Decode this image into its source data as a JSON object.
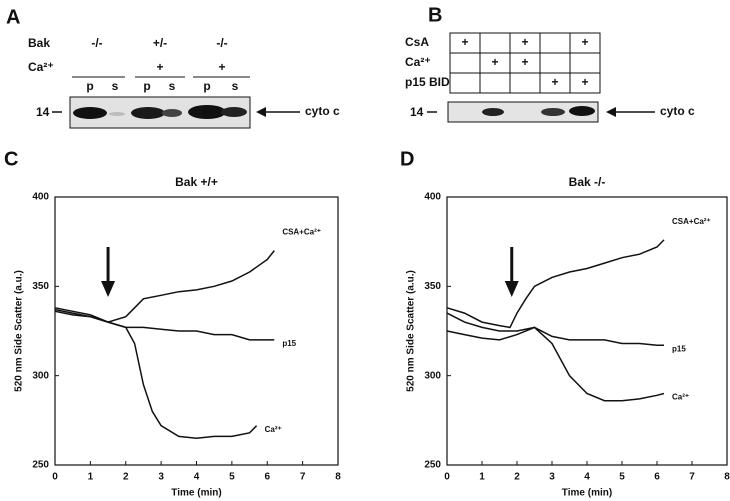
{
  "panels": {
    "A": {
      "letter": "A",
      "row_labels": [
        "Bak",
        "Ca²⁺"
      ],
      "genotypes": [
        "-/-",
        "+/-",
        "-/-"
      ],
      "calcium": [
        null,
        "+",
        "+"
      ],
      "lanes": [
        "p",
        "s",
        "p",
        "s",
        "p",
        "s"
      ],
      "marker": "14",
      "band": "cyto c"
    },
    "B": {
      "letter": "B",
      "row_labels": [
        "CsA",
        "Ca²⁺",
        "p15 BID"
      ],
      "rows": [
        [
          "+",
          null,
          "+",
          null,
          "+"
        ],
        [
          null,
          "+",
          "+",
          null,
          null
        ],
        [
          null,
          null,
          null,
          "+",
          "+"
        ]
      ],
      "marker": "14",
      "band": "cyto c"
    },
    "C": {
      "letter": "C"
    },
    "D": {
      "letter": "D"
    }
  },
  "chart_data": [
    {
      "type": "line",
      "title": "Bak +/+",
      "x_label": "Time (min)",
      "y_label": "520 nm Side Scatter (a.u.)",
      "xlim": [
        0,
        8
      ],
      "xticks": [
        0,
        1,
        2,
        3,
        4,
        5,
        6,
        7,
        8
      ],
      "ylim": [
        250,
        400
      ],
      "yticks": [
        250,
        300,
        350,
        400
      ],
      "series": [
        {
          "name": "CSA+Ca²⁺",
          "color": "#111111",
          "x": [
            0,
            0.5,
            1,
            1.5,
            2,
            2.25,
            2.5,
            3,
            3.5,
            4,
            4.5,
            5,
            5.5,
            6,
            6.2
          ],
          "values": [
            338,
            336,
            334,
            330,
            333,
            338,
            343,
            345,
            347,
            348,
            350,
            353,
            358,
            365,
            370
          ]
        },
        {
          "name": "p15",
          "color": "#111111",
          "x": [
            0,
            0.5,
            1,
            1.5,
            2,
            2.5,
            3,
            3.5,
            4,
            4.5,
            5,
            5.5,
            6,
            6.2
          ],
          "values": [
            337,
            335,
            333,
            330,
            327,
            327,
            326,
            325,
            325,
            323,
            323,
            320,
            320,
            320
          ]
        },
        {
          "name": "Ca²⁺",
          "color": "#111111",
          "x": [
            0,
            0.5,
            1,
            1.5,
            2,
            2.25,
            2.5,
            2.75,
            3,
            3.5,
            4,
            4.5,
            5,
            5.5,
            5.7
          ],
          "values": [
            336,
            334,
            333,
            330,
            327,
            318,
            295,
            280,
            272,
            266,
            265,
            266,
            266,
            268,
            272
          ]
        }
      ]
    },
    {
      "type": "line",
      "title": "Bak -/-",
      "x_label": "Time (min)",
      "y_label": "520 nm Side Scatter (a.u.)",
      "xlim": [
        0,
        8
      ],
      "xticks": [
        0,
        1,
        2,
        3,
        4,
        5,
        6,
        7,
        8
      ],
      "ylim": [
        250,
        400
      ],
      "yticks": [
        250,
        300,
        350,
        400
      ],
      "series": [
        {
          "name": "CSA+Ca²⁺",
          "color": "#111111",
          "x": [
            0,
            0.5,
            1,
            1.5,
            1.8,
            2,
            2.25,
            2.5,
            3,
            3.5,
            4,
            4.5,
            5,
            5.5,
            6,
            6.2
          ],
          "values": [
            338,
            335,
            330,
            328,
            327,
            335,
            343,
            350,
            355,
            358,
            360,
            363,
            366,
            368,
            372,
            376
          ]
        },
        {
          "name": "p15",
          "color": "#111111",
          "x": [
            0,
            0.5,
            1,
            1.5,
            2,
            2.5,
            3,
            3.5,
            4,
            4.5,
            5,
            5.5,
            6,
            6.2
          ],
          "values": [
            335,
            330,
            327,
            325,
            325,
            327,
            322,
            320,
            320,
            320,
            318,
            318,
            317,
            317
          ]
        },
        {
          "name": "Ca²⁺",
          "color": "#111111",
          "x": [
            0,
            0.5,
            1,
            1.5,
            2,
            2.5,
            3,
            3.5,
            4,
            4.5,
            5,
            5.5,
            6,
            6.2
          ],
          "values": [
            325,
            323,
            321,
            320,
            323,
            327,
            318,
            300,
            290,
            286,
            286,
            287,
            289,
            290
          ]
        }
      ]
    }
  ]
}
